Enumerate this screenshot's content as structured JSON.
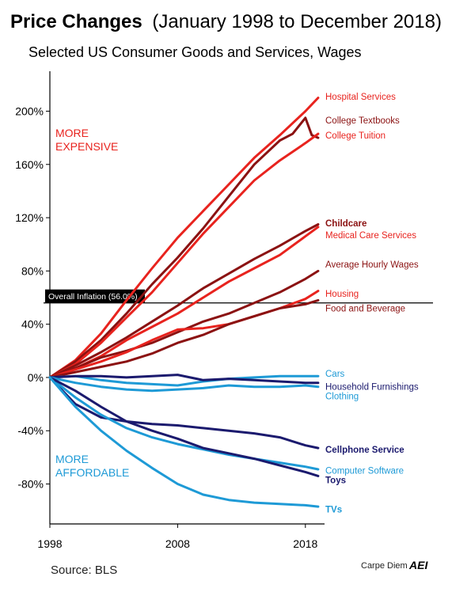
{
  "title_bold": "Price Changes",
  "title_rest": "(January 1998 to December 2018)",
  "subtitle": "Selected US Consumer Goods and Services, Wages",
  "source": "Source: BLS",
  "credit": "Carpe Diem",
  "logo_text": "AEI",
  "annotations": {
    "expensive": [
      "MORE",
      "EXPENSIVE"
    ],
    "affordable": [
      "MORE",
      "AFFORDABLE"
    ]
  },
  "colors": {
    "red": "#e8231e",
    "dark_red": "#8b1212",
    "navy": "#1b1a6e",
    "light_blue": "#1e9ad6",
    "axis": "#000000"
  },
  "chart_data": {
    "type": "line",
    "xlim": [
      1998,
      2019.5
    ],
    "ylim": [
      -110,
      230
    ],
    "xticks": [
      {
        "v": 1998,
        "label": "1998"
      },
      {
        "v": 2008,
        "label": "2008"
      },
      {
        "v": 2018,
        "label": "2018"
      }
    ],
    "yticks": [
      {
        "v": 200,
        "label": "200%"
      },
      {
        "v": 160,
        "label": "160%"
      },
      {
        "v": 120,
        "label": "120%"
      },
      {
        "v": 80,
        "label": "80%"
      },
      {
        "v": 40,
        "label": "40%"
      },
      {
        "v": 0,
        "label": "0%"
      },
      {
        "v": -40,
        "label": "-40%"
      },
      {
        "v": -80,
        "label": "-80%"
      }
    ],
    "reference_line": {
      "value": 56.0,
      "label": "Overall Inflation (56.0%)"
    },
    "series": [
      {
        "name": "Hospital Services",
        "color": "#e8231e",
        "bold": false,
        "label_y": 211,
        "x": [
          1998,
          2000,
          2002,
          2004,
          2006,
          2008,
          2010,
          2012,
          2014,
          2016,
          2018,
          2019
        ],
        "y": [
          0,
          13,
          33,
          58,
          82,
          105,
          125,
          145,
          165,
          182,
          200,
          210
        ]
      },
      {
        "name": "College Textbooks",
        "color": "#8b1212",
        "bold": false,
        "label_y": 193,
        "x": [
          1998,
          2000,
          2002,
          2004,
          2006,
          2008,
          2010,
          2012,
          2014,
          2016,
          2017,
          2018,
          2018.5,
          2019
        ],
        "y": [
          0,
          12,
          28,
          48,
          70,
          90,
          112,
          136,
          160,
          178,
          183,
          195,
          182,
          180
        ]
      },
      {
        "name": "College Tuition",
        "color": "#e8231e",
        "bold": false,
        "label_y": 182,
        "x": [
          1998,
          2000,
          2002,
          2004,
          2006,
          2008,
          2010,
          2012,
          2014,
          2016,
          2018,
          2019
        ],
        "y": [
          0,
          10,
          26,
          45,
          64,
          86,
          108,
          128,
          148,
          163,
          176,
          183
        ]
      },
      {
        "name": "Childcare",
        "color": "#8b1212",
        "bold": true,
        "label_y": 116,
        "x": [
          1998,
          2000,
          2002,
          2004,
          2006,
          2008,
          2010,
          2012,
          2014,
          2016,
          2018,
          2019
        ],
        "y": [
          0,
          9,
          19,
          30,
          42,
          54,
          67,
          78,
          89,
          99,
          110,
          115
        ]
      },
      {
        "name": "Medical Care Services",
        "color": "#e8231e",
        "bold": false,
        "label_y": 107,
        "x": [
          1998,
          2000,
          2002,
          2004,
          2006,
          2008,
          2010,
          2012,
          2014,
          2016,
          2018,
          2019
        ],
        "y": [
          0,
          7,
          16,
          28,
          38,
          48,
          60,
          72,
          82,
          92,
          106,
          113
        ]
      },
      {
        "name": "Average Hourly Wages",
        "color": "#8b1212",
        "bold": false,
        "label_y": 85,
        "x": [
          1998,
          2000,
          2002,
          2004,
          2006,
          2008,
          2010,
          2012,
          2014,
          2016,
          2018,
          2019
        ],
        "y": [
          0,
          7,
          15,
          20,
          26,
          34,
          42,
          48,
          56,
          64,
          74,
          80
        ]
      },
      {
        "name": "Housing",
        "color": "#e8231e",
        "bold": false,
        "label_y": 63,
        "x": [
          1998,
          2000,
          2002,
          2004,
          2006,
          2008,
          2010,
          2012,
          2014,
          2016,
          2018,
          2019
        ],
        "y": [
          0,
          6,
          12,
          19,
          28,
          36,
          37,
          40,
          46,
          52,
          59,
          65
        ]
      },
      {
        "name": "Food and Beverage",
        "color": "#8b1212",
        "bold": false,
        "label_y": 52,
        "x": [
          1998,
          2000,
          2002,
          2004,
          2006,
          2008,
          2010,
          2012,
          2014,
          2016,
          2018,
          2019
        ],
        "y": [
          0,
          4,
          8,
          12,
          18,
          26,
          32,
          40,
          46,
          52,
          55,
          58
        ]
      },
      {
        "name": "Cars",
        "color": "#1e9ad6",
        "bold": false,
        "label_y": 3,
        "x": [
          1998,
          2000,
          2002,
          2004,
          2006,
          2008,
          2010,
          2012,
          2014,
          2016,
          2018,
          2019
        ],
        "y": [
          0,
          1,
          -2,
          -4,
          -5,
          -6,
          -3,
          -1,
          0,
          1,
          1,
          1
        ]
      },
      {
        "name": "Household Furnishings",
        "color": "#1b1a6e",
        "bold": false,
        "label_y": -7,
        "x": [
          1998,
          2000,
          2002,
          2004,
          2006,
          2008,
          2010,
          2012,
          2014,
          2016,
          2018,
          2019
        ],
        "y": [
          0,
          1,
          1,
          0,
          1,
          2,
          -2,
          -1,
          -2,
          -3,
          -4,
          -4
        ]
      },
      {
        "name": "Clothing",
        "color": "#1e9ad6",
        "bold": false,
        "label_y": -14,
        "x": [
          1998,
          2000,
          2002,
          2004,
          2006,
          2008,
          2010,
          2012,
          2014,
          2016,
          2018,
          2019
        ],
        "y": [
          0,
          -4,
          -7,
          -9,
          -10,
          -9,
          -8,
          -6,
          -7,
          -7,
          -6,
          -7
        ]
      },
      {
        "name": "Cellphone Service",
        "color": "#1b1a6e",
        "bold": true,
        "label_y": -54,
        "x": [
          1998,
          2000,
          2002,
          2004,
          2006,
          2008,
          2010,
          2012,
          2014,
          2016,
          2018,
          2019
        ],
        "y": [
          0,
          -20,
          -30,
          -33,
          -35,
          -36,
          -38,
          -40,
          -42,
          -45,
          -51,
          -53
        ]
      },
      {
        "name": "Computer Software",
        "color": "#1e9ad6",
        "bold": false,
        "label_y": -70,
        "x": [
          1998,
          2000,
          2002,
          2004,
          2006,
          2008,
          2010,
          2012,
          2014,
          2016,
          2018,
          2019
        ],
        "y": [
          0,
          -15,
          -28,
          -38,
          -45,
          -50,
          -54,
          -58,
          -61,
          -64,
          -67,
          -69
        ]
      },
      {
        "name": "Toys",
        "color": "#1b1a6e",
        "bold": true,
        "label_y": -77,
        "x": [
          1998,
          2000,
          2002,
          2004,
          2006,
          2008,
          2010,
          2012,
          2014,
          2016,
          2018,
          2019
        ],
        "y": [
          0,
          -10,
          -22,
          -33,
          -40,
          -46,
          -53,
          -57,
          -61,
          -66,
          -71,
          -74
        ]
      },
      {
        "name": "TVs",
        "color": "#1e9ad6",
        "bold": true,
        "label_y": -99,
        "x": [
          1998,
          2000,
          2002,
          2004,
          2006,
          2008,
          2010,
          2012,
          2014,
          2016,
          2018,
          2019
        ],
        "y": [
          0,
          -22,
          -40,
          -55,
          -68,
          -80,
          -88,
          -92,
          -94,
          -95,
          -96,
          -97
        ]
      }
    ]
  }
}
